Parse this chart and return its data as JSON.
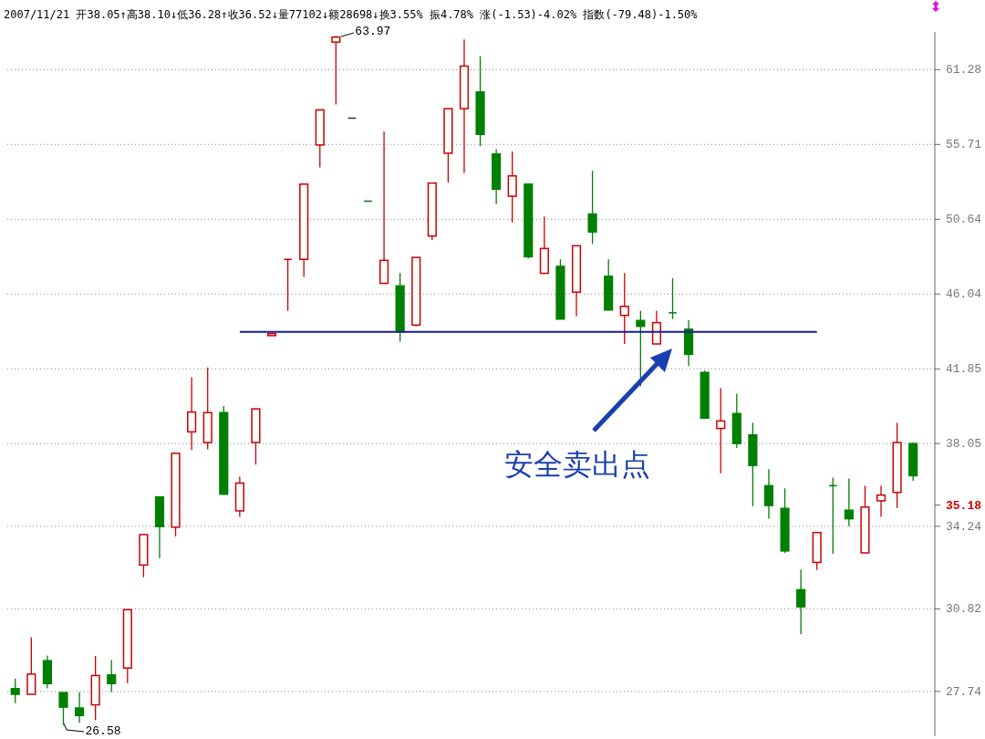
{
  "chart_data": {
    "type": "candlestick",
    "subtitle": "2007/11/21 开38.05↑高38.10↓低36.28↑收36.52↓量77102↓额28698↓换3.55% 振4.78% 涨(-1.53)-4.02% 指数(-79.48)-1.50%",
    "categories": [
      null,
      null,
      null,
      null,
      null,
      null,
      null,
      null,
      null,
      null,
      null,
      null,
      null,
      null,
      null,
      null,
      null,
      null,
      null,
      null,
      null,
      null,
      null,
      null,
      null,
      null,
      null,
      null,
      null,
      null,
      null,
      null,
      null,
      null,
      null,
      null,
      null,
      null,
      null,
      null,
      null,
      null,
      null,
      null,
      null,
      null,
      null,
      null,
      null,
      null,
      null,
      null,
      null,
      null,
      null,
      null,
      null
    ],
    "ohlc": [
      [
        27.84,
        28.2,
        27.33,
        27.64
      ],
      [
        27.64,
        29.72,
        27.64,
        28.36
      ],
      [
        28.85,
        29.04,
        27.85,
        28.02
      ],
      [
        27.7,
        27.7,
        26.58,
        27.19
      ],
      [
        27.16,
        27.71,
        26.65,
        26.9
      ],
      [
        27.27,
        29.02,
        26.75,
        28.31
      ],
      [
        28.33,
        28.87,
        27.72,
        28.02
      ],
      [
        28.58,
        30.79,
        28.04,
        30.79
      ],
      [
        32.59,
        33.88,
        32.09,
        33.88
      ],
      [
        35.55,
        35.55,
        32.88,
        34.23
      ],
      [
        34.2,
        37.58,
        33.8,
        37.58
      ],
      [
        38.62,
        41.41,
        37.74,
        39.61
      ],
      [
        38.1,
        41.93,
        37.77,
        39.58
      ],
      [
        39.58,
        39.92,
        35.67,
        35.67
      ],
      [
        34.92,
        36.47,
        34.66,
        36.18
      ],
      [
        38.1,
        39.77,
        37.04,
        39.77
      ],
      [
        43.66,
        43.77,
        43.66,
        43.77
      ],
      [
        48.12,
        48.12,
        45.06,
        48.12
      ],
      [
        48.12,
        52.96,
        47.06,
        52.96
      ],
      [
        55.67,
        58.22,
        54.1,
        58.22
      ],
      [
        63.47,
        63.97,
        58.63,
        63.88
      ],
      [
        57.61,
        57.61,
        57.61,
        57.61
      ],
      [
        51.83,
        51.83,
        51.83,
        51.83
      ],
      [
        46.67,
        56.62,
        46.67,
        48.06
      ],
      [
        46.52,
        47.29,
        43.32,
        43.87
      ],
      [
        44.25,
        48.24,
        44.18,
        48.24
      ],
      [
        49.57,
        53.03,
        49.32,
        53.03
      ],
      [
        55.09,
        58.31,
        53.06,
        58.31
      ],
      [
        58.31,
        63.69,
        53.73,
        61.56
      ],
      [
        59.56,
        62.35,
        55.59,
        56.43
      ],
      [
        55.03,
        55.37,
        51.63,
        52.62
      ],
      [
        52.15,
        55.22,
        50.44,
        53.52
      ],
      [
        52.96,
        52.96,
        48.17,
        48.28
      ],
      [
        47.27,
        50.83,
        47.27,
        48.79
      ],
      [
        47.69,
        48.12,
        44.59,
        44.59
      ],
      [
        46.15,
        48.96,
        44.75,
        48.96
      ],
      [
        50.98,
        53.86,
        49.07,
        49.83
      ],
      [
        47.09,
        48.12,
        45.11,
        45.11
      ],
      [
        44.8,
        47.29,
        43.2,
        45.32
      ],
      [
        44.51,
        45.06,
        40.92,
        44.18
      ],
      [
        43.2,
        45.06,
        43.2,
        44.39
      ],
      [
        44.95,
        46.97,
        44.59,
        44.95
      ],
      [
        44.02,
        44.54,
        42.0,
        42.63
      ],
      [
        41.66,
        41.76,
        39.3,
        39.3
      ],
      [
        38.79,
        40.83,
        36.63,
        39.16
      ],
      [
        39.53,
        40.55,
        37.84,
        38.05
      ],
      [
        38.47,
        39.07,
        35.13,
        37.0
      ],
      [
        36.06,
        36.83,
        34.57,
        35.16
      ],
      [
        35.03,
        35.94,
        33.1,
        33.18
      ],
      [
        31.58,
        32.4,
        29.84,
        30.9
      ],
      [
        32.7,
        33.97,
        32.39,
        33.97
      ],
      [
        36.06,
        36.43,
        33.06,
        36.06
      ],
      [
        34.95,
        36.39,
        34.24,
        34.57
      ],
      [
        33.1,
        36.06,
        33.1,
        35.09
      ],
      [
        35.37,
        36.06,
        34.66,
        35.63
      ],
      [
        35.75,
        39.07,
        35.05,
        38.1
      ],
      [
        38.05,
        38.1,
        36.28,
        36.52
      ]
    ],
    "colors": [
      "#008000",
      "#cc0000",
      "#008000",
      "#008000",
      "#008000",
      "#cc0000",
      "#008000",
      "#cc0000",
      "#cc0000",
      "#008000",
      "#cc0000",
      "#cc0000",
      "#cc0000",
      "#008000",
      "#cc0000",
      "#cc0000",
      "#cc0000",
      "#cc0000",
      "#cc0000",
      "#cc0000",
      "#cc0000",
      "#333333",
      "#008000",
      "#cc0000",
      "#008000",
      "#cc0000",
      "#cc0000",
      "#cc0000",
      "#cc0000",
      "#008000",
      "#008000",
      "#cc0000",
      "#008000",
      "#cc0000",
      "#008000",
      "#cc0000",
      "#008000",
      "#008000",
      "#cc0000",
      "#008000",
      "#cc0000",
      "#008000",
      "#008000",
      "#008000",
      "#cc0000",
      "#008000",
      "#008000",
      "#008000",
      "#008000",
      "#008000",
      "#cc0000",
      "#008000",
      "#008000",
      "#cc0000",
      "#cc0000",
      "#cc0000",
      "#008000"
    ],
    "series": [
      {
        "type": "line",
        "color": "#1a1a9c",
        "values": [
          null,
          null,
          null,
          null,
          null,
          null,
          null,
          null,
          null,
          null,
          null,
          null,
          null,
          null,
          43.87,
          null,
          null,
          null,
          null,
          null,
          null,
          null,
          null,
          null,
          null,
          null,
          null,
          null,
          null,
          null,
          null,
          null,
          null,
          null,
          null,
          null,
          null,
          null,
          null,
          null,
          null,
          null,
          null,
          null,
          null,
          null,
          null,
          null,
          null,
          null,
          43.87,
          null,
          null,
          null,
          null,
          null,
          null
        ]
      }
    ],
    "log": "y",
    "ylim": [
      26.2,
      64.3
    ],
    "yticks": [
      27.74,
      30.82,
      34.24,
      {
        "value": 35.18,
        "label": "35.18"
      },
      38.05,
      41.85,
      46.04,
      50.64,
      55.71,
      61.28
    ],
    "grid": "y",
    "tick_labels": "y",
    "annotations": [
      "安全卖出点",
      "63.97",
      "26.58"
    ]
  }
}
